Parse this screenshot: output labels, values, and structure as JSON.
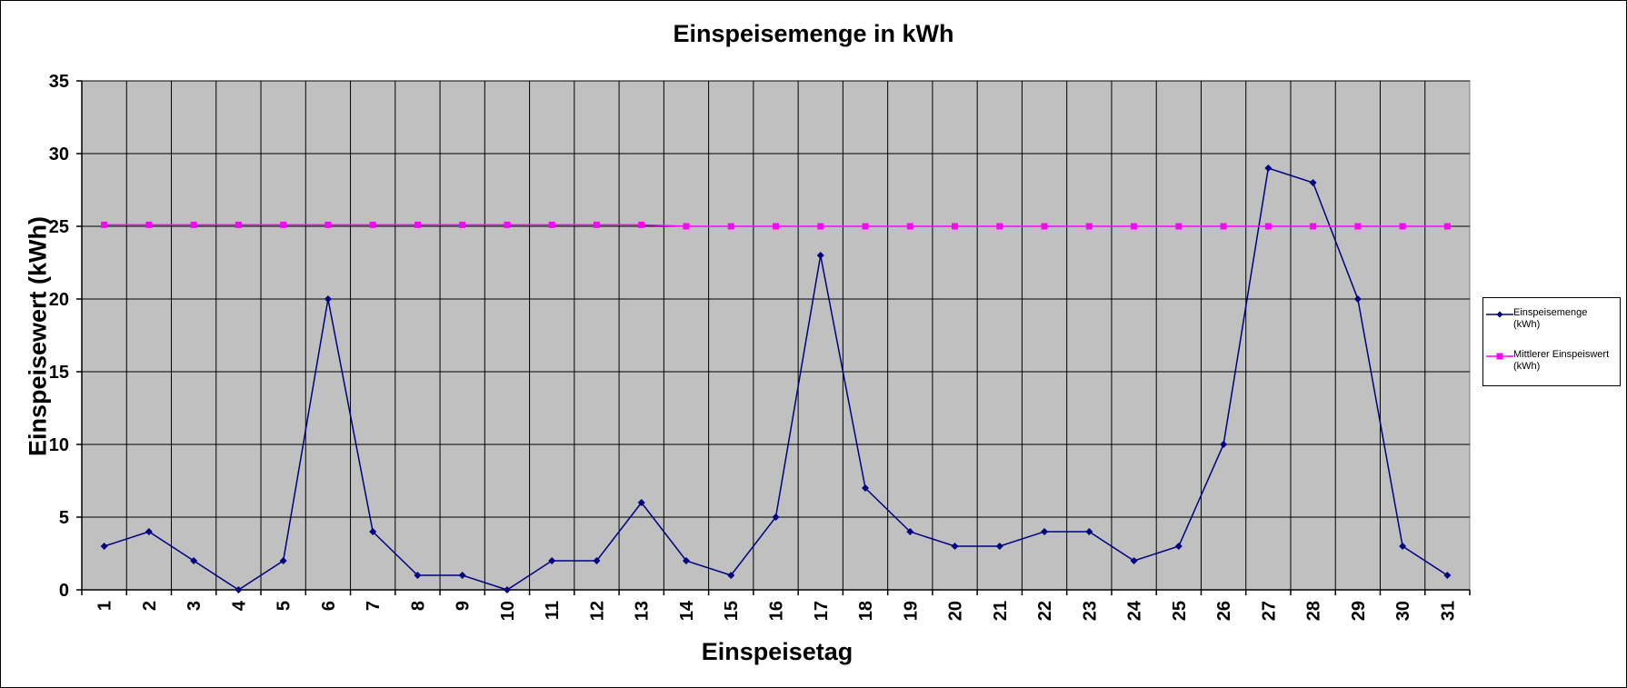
{
  "chart_data": {
    "type": "line",
    "title": "Einspeisemenge in kWh",
    "xlabel": "Einspeisetag",
    "ylabel": "Einspeisewert  (kWh)",
    "ylim": [
      0,
      35
    ],
    "yticks": [
      0,
      5,
      10,
      15,
      20,
      25,
      30,
      35
    ],
    "grid": true,
    "plot_background": "#c0c0c0",
    "legend_position": "right",
    "categories": [
      "1",
      "2",
      "3",
      "4",
      "5",
      "6",
      "7",
      "8",
      "9",
      "10",
      "11",
      "12",
      "13",
      "14",
      "15",
      "16",
      "17",
      "18",
      "19",
      "20",
      "21",
      "22",
      "23",
      "24",
      "25",
      "26",
      "27",
      "28",
      "29",
      "30",
      "31"
    ],
    "series": [
      {
        "name": "Einspeisemenge (kWh)",
        "color": "#000080",
        "marker": "diamond",
        "values": [
          3,
          4,
          2,
          0,
          2,
          20,
          4,
          1,
          1,
          0,
          2,
          2,
          6,
          2,
          1,
          5,
          23,
          7,
          4,
          3,
          3,
          4,
          4,
          2,
          3,
          10,
          29,
          28,
          20,
          3,
          1
        ]
      },
      {
        "name": "Mittlerer Einspeiswert (kWh)",
        "color": "#ff00ff",
        "marker": "square",
        "values": [
          25.1,
          25.1,
          25.1,
          25.1,
          25.1,
          25.1,
          25.1,
          25.1,
          25.1,
          25.1,
          25.1,
          25.1,
          25.1,
          25.0,
          25.0,
          25.0,
          25.0,
          25.0,
          25.0,
          25.0,
          25.0,
          25.0,
          25.0,
          25.0,
          25.0,
          25.0,
          25.0,
          25.0,
          25.0,
          25.0,
          25.0
        ]
      }
    ],
    "legend": {
      "items": [
        {
          "line1": "Einspeisemenge",
          "line2": "(kWh)"
        },
        {
          "line1": "Mittlerer Einspeiswert",
          "line2": "(kWh)"
        }
      ]
    }
  }
}
